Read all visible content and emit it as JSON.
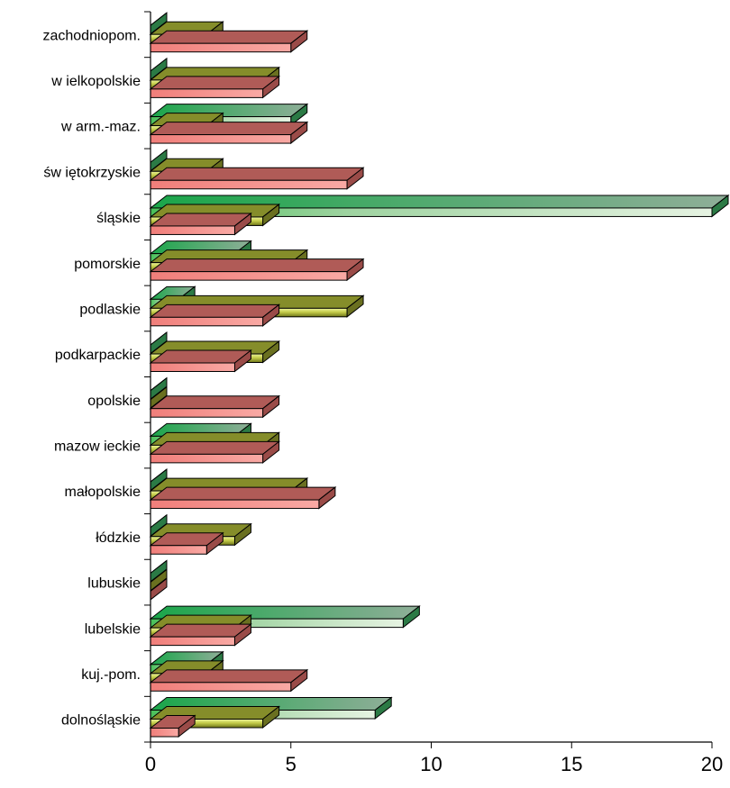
{
  "chart_data": {
    "type": "bar",
    "orientation": "horizontal",
    "style": "3d-bars",
    "categories": [
      "zachodniopom.",
      "wielkopolskie",
      "warm.-maz.",
      "świętokrzyskie",
      "śląskie",
      "pomorskie",
      "podlaskie",
      "podkarpackie",
      "opolskie",
      "mazowieckie",
      "małopolskie",
      "łódzkie",
      "lubuskie",
      "lubelskie",
      "kuj.-pom.",
      "dolnośląskie"
    ],
    "category_display": [
      "zachodniopom.",
      "w ielkopolskie",
      "w arm.-maz.",
      "św iętokrzyskie",
      "śląskie",
      "pomorskie",
      "podlaskie",
      "podkarpackie",
      "opolskie",
      "mazow ieckie",
      "małopolskie",
      "łódzkie",
      "lubuskie",
      "lubelskie",
      "kuj.-pom.",
      "dolnośląskie"
    ],
    "series": [
      {
        "color": "#f08a86",
        "values": [
          5,
          4,
          5,
          7,
          3,
          7,
          4,
          3,
          4,
          4,
          6,
          2,
          0,
          3,
          5,
          1
        ]
      },
      {
        "color": "#a8b040",
        "values": [
          2,
          4,
          2,
          2,
          4,
          5,
          7,
          4,
          0,
          4,
          5,
          3,
          0,
          3,
          2,
          4
        ]
      },
      {
        "color": "#3cb060",
        "values": [
          0,
          0,
          5,
          0,
          20,
          3,
          1,
          0,
          0,
          3,
          0,
          0,
          0,
          9,
          2,
          8
        ]
      }
    ],
    "xlim": [
      0,
      20
    ],
    "xticks": [
      "0",
      "5",
      "10",
      "15",
      "20"
    ],
    "xlabel": "",
    "ylabel": "",
    "legend": "none",
    "grid": false
  }
}
